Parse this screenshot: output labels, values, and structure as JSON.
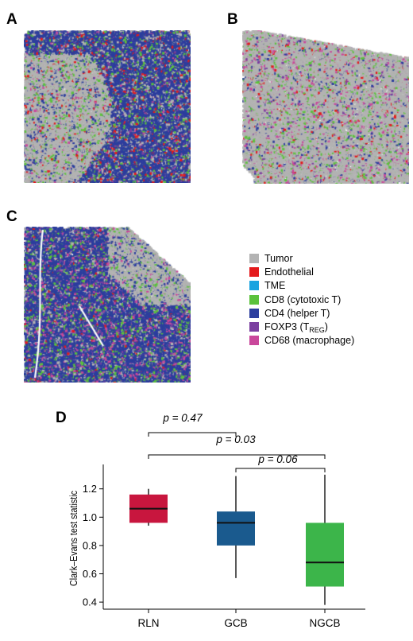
{
  "panels": {
    "a": {
      "letter": "A"
    },
    "b": {
      "letter": "B"
    },
    "c": {
      "letter": "C"
    },
    "d": {
      "letter": "D"
    }
  },
  "legend": {
    "items": [
      {
        "label": "Tumor",
        "color": "#b3b3b3"
      },
      {
        "label": "Endothelial",
        "color": "#e41a1c"
      },
      {
        "label": "TME",
        "color": "#1aa3e0"
      },
      {
        "label": "CD8 (cytotoxic T)",
        "color": "#5bc23c"
      },
      {
        "label": "CD4 (helper T)",
        "color": "#2c3e9e"
      },
      {
        "label": "FOXP3 (T",
        "label_sub": "REG",
        "label_end": ")",
        "color": "#7b3fa0"
      },
      {
        "label": "CD68 (macrophage)",
        "color": "#c9479b"
      }
    ]
  },
  "chart_data": {
    "type": "box",
    "ylabel": "Clark–Evans test statistic",
    "ylim": [
      0.35,
      1.35
    ],
    "yticks": [
      0.4,
      0.6,
      0.8,
      1.0,
      1.2
    ],
    "ytick_labels": [
      "0.4",
      "0.6",
      "0.8",
      "1.0",
      "1.2"
    ],
    "categories": [
      "RLN",
      "GCB",
      "NGCB"
    ],
    "boxes": [
      {
        "name": "RLN",
        "whisker_low": 0.94,
        "q1": 0.96,
        "median": 1.06,
        "q3": 1.16,
        "whisker_high": 1.2,
        "color": "#c8163e"
      },
      {
        "name": "GCB",
        "whisker_low": 0.57,
        "q1": 0.8,
        "median": 0.96,
        "q3": 1.04,
        "whisker_high": 1.29,
        "color": "#1a5a8e"
      },
      {
        "name": "NGCB",
        "whisker_low": 0.38,
        "q1": 0.51,
        "median": 0.68,
        "q3": 0.96,
        "whisker_high": 1.3,
        "color": "#3cb54a"
      }
    ],
    "comparisons": [
      {
        "from": "RLN",
        "to": "GCB",
        "label": "p = 0.47"
      },
      {
        "from": "RLN",
        "to": "NGCB",
        "label": "p = 0.03"
      },
      {
        "from": "GCB",
        "to": "NGCB",
        "label": "p = 0.06"
      }
    ]
  }
}
